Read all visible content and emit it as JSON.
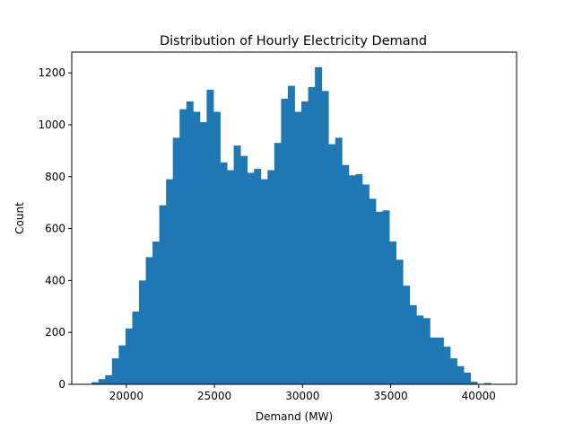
{
  "chart_data": {
    "type": "bar",
    "title": "Distribution of Hourly Electricity Demand",
    "xlabel": "Demand (MW)",
    "ylabel": "Count",
    "xlim": [
      16900,
      42150
    ],
    "ylim": [
      0,
      1280
    ],
    "xticks": [
      20000,
      25000,
      30000,
      35000,
      40000
    ],
    "yticks": [
      0,
      200,
      400,
      600,
      800,
      1000,
      1200
    ],
    "grid": false,
    "bin_start": 18030,
    "bin_width": 384,
    "color": "#1f77b4",
    "counts": [
      8,
      20,
      35,
      100,
      150,
      215,
      280,
      400,
      490,
      550,
      690,
      790,
      950,
      1060,
      1090,
      1050,
      1010,
      1135,
      1050,
      855,
      825,
      920,
      880,
      815,
      830,
      790,
      825,
      930,
      1100,
      1150,
      1050,
      1090,
      1145,
      1222,
      1130,
      925,
      950,
      845,
      805,
      810,
      770,
      715,
      665,
      670,
      550,
      480,
      380,
      305,
      265,
      255,
      180,
      180,
      145,
      100,
      70,
      45,
      10,
      0,
      5
    ]
  }
}
